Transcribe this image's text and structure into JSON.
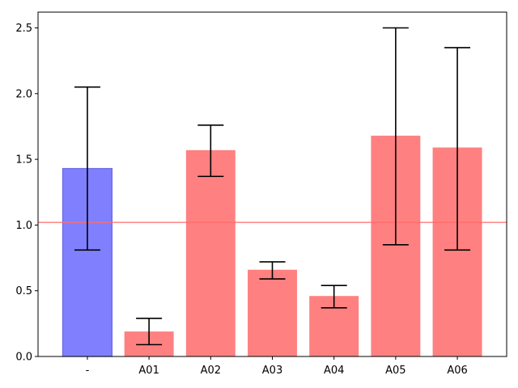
{
  "chart_data": {
    "type": "bar",
    "title": "",
    "xlabel": "",
    "ylabel": "",
    "categories": [
      "-",
      "A01",
      "A02",
      "A03",
      "A04",
      "A05",
      "A06"
    ],
    "values": [
      1.43,
      0.19,
      1.57,
      0.66,
      0.46,
      1.68,
      1.59
    ],
    "error_low": [
      0.81,
      0.09,
      1.37,
      0.59,
      0.37,
      0.85,
      0.81
    ],
    "error_high": [
      2.05,
      0.29,
      1.76,
      0.72,
      0.54,
      2.5,
      2.35
    ],
    "bar_colors": [
      "#8080ff",
      "#ff8080",
      "#ff8080",
      "#ff8080",
      "#ff8080",
      "#ff8080",
      "#ff8080"
    ],
    "bar_edge_colors": [
      "#6666e6",
      "none",
      "none",
      "none",
      "none",
      "none",
      "none"
    ],
    "reference_line": {
      "y": 1.02,
      "color": "#ff6b6b"
    },
    "ylim": [
      0,
      2.62
    ],
    "yticks": [
      0.0,
      0.5,
      1.0,
      1.5,
      2.0,
      2.5
    ],
    "ytick_labels": [
      "0.0",
      "0.5",
      "1.0",
      "1.5",
      "2.0",
      "2.5"
    ],
    "grid": false,
    "legend": "none"
  }
}
